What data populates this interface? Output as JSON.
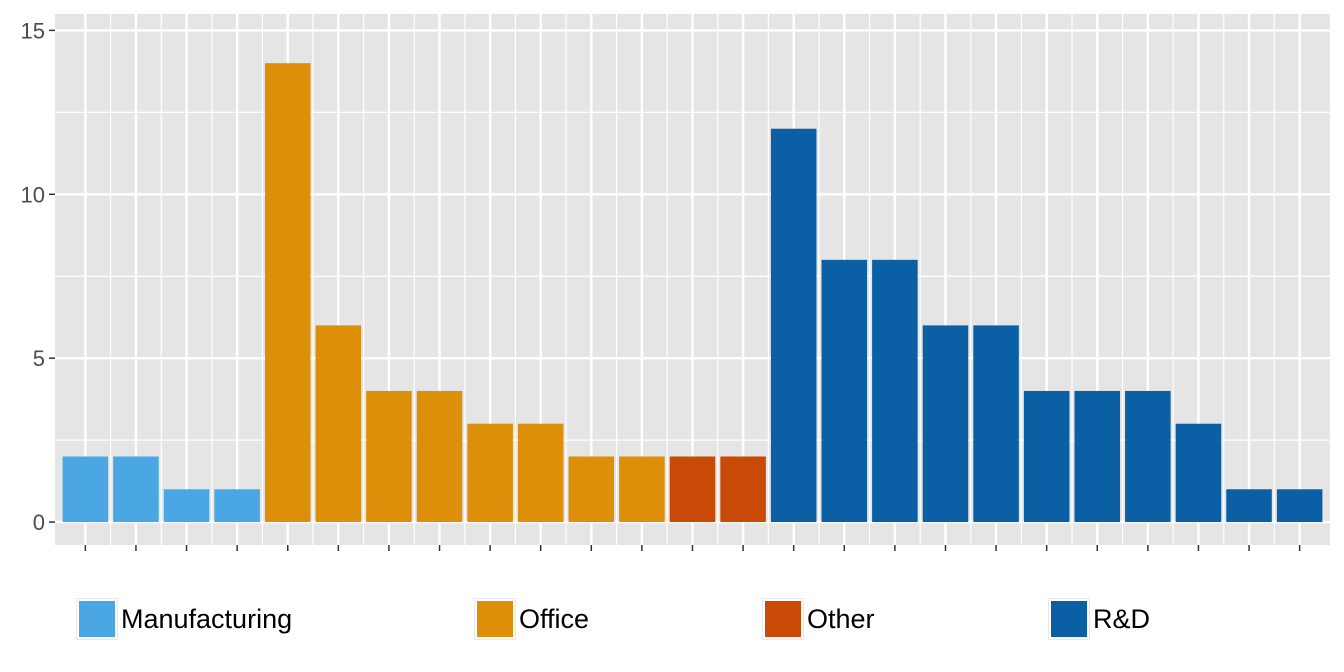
{
  "chart_data": {
    "type": "bar",
    "title": "",
    "xlabel": "",
    "ylabel": "",
    "ylim": [
      0,
      15.5
    ],
    "yticks": [
      0,
      5,
      10,
      15
    ],
    "ytick_labels": [
      "0",
      "5",
      "10",
      "15"
    ],
    "grid": true,
    "legend_position": "bottom",
    "values": [
      2,
      2,
      1,
      1,
      14,
      6,
      4,
      4,
      3,
      3,
      2,
      2,
      2,
      2,
      12,
      8,
      8,
      6,
      6,
      4,
      4,
      4,
      3,
      1,
      1
    ],
    "groups": [
      "Manufacturing",
      "Manufacturing",
      "Manufacturing",
      "Manufacturing",
      "Office",
      "Office",
      "Office",
      "Office",
      "Office",
      "Office",
      "Office",
      "Office",
      "Other",
      "Other",
      "R&D",
      "R&D",
      "R&D",
      "R&D",
      "R&D",
      "R&D",
      "R&D",
      "R&D",
      "R&D",
      "R&D",
      "R&D"
    ],
    "series": [
      {
        "name": "Manufacturing",
        "color": "#4aa7e3"
      },
      {
        "name": "Office",
        "color": "#de8f0a"
      },
      {
        "name": "Other",
        "color": "#c84a06"
      },
      {
        "name": "R&D",
        "color": "#0b5fa5"
      }
    ]
  },
  "style": {
    "panel_background": "#e5e5e5",
    "grid_color": "#ffffff",
    "tick_color": "#333333"
  }
}
